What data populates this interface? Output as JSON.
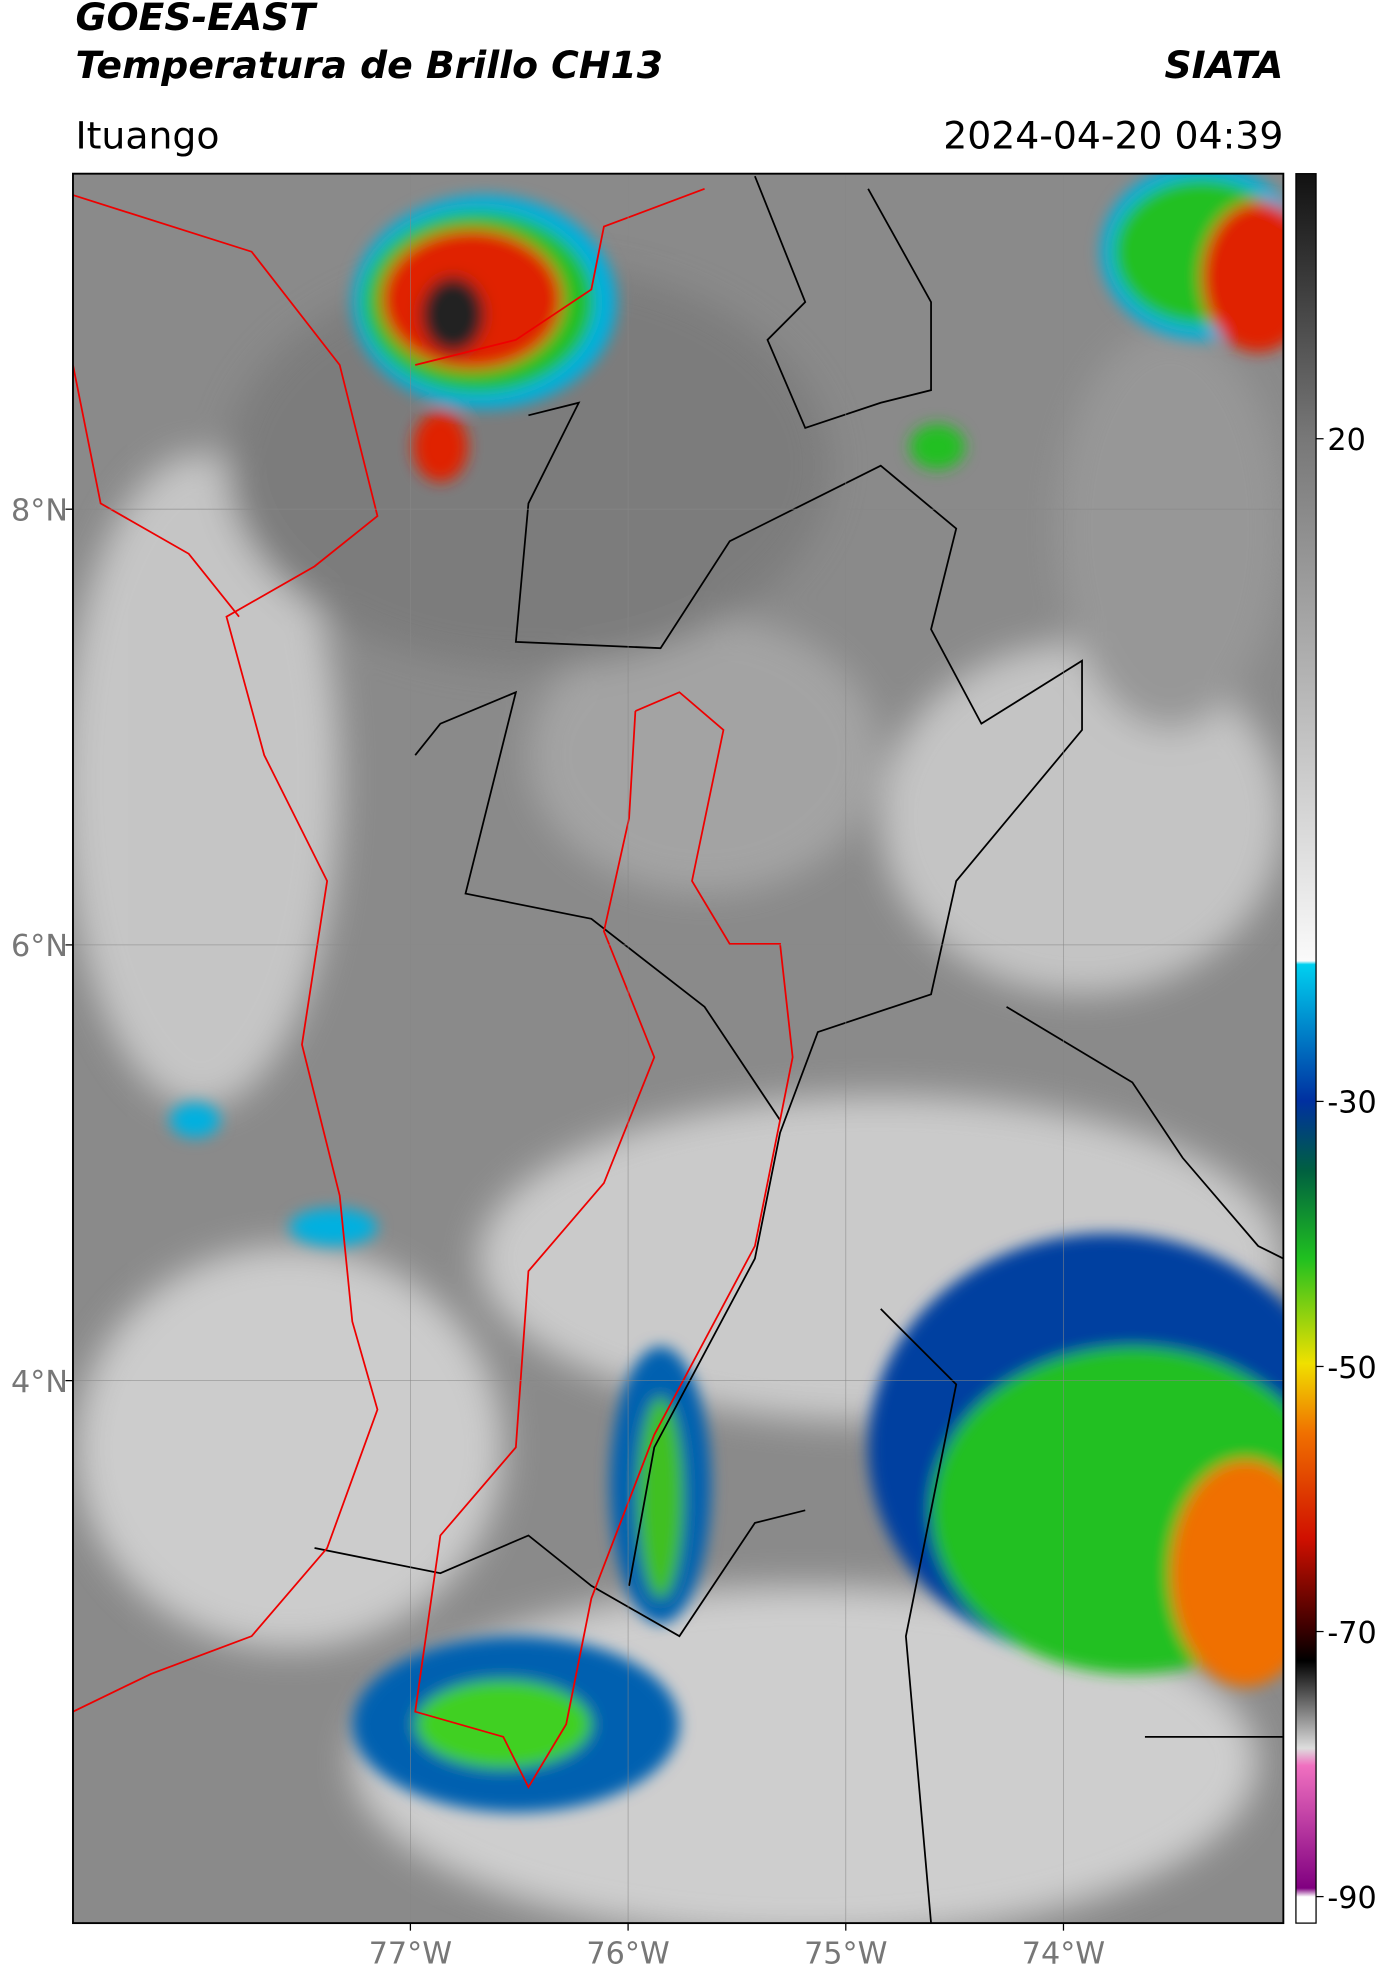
{
  "header": {
    "title": "GOES-EAST",
    "subtitle": "Temperatura de Brillo CH13",
    "source": "SIATA",
    "location": "Ituango",
    "timestamp": "2024-04-20 04:39"
  },
  "map": {
    "xlim": [
      -78.55,
      -72.99
    ],
    "ylim": [
      1.51,
      9.54
    ],
    "xticks": [
      {
        "value": -77,
        "label": "77°W"
      },
      {
        "value": -76,
        "label": "76°W"
      },
      {
        "value": -75,
        "label": "75°W"
      },
      {
        "value": -74,
        "label": "74°W"
      }
    ],
    "yticks": [
      {
        "value": 8,
        "label": "8°N"
      },
      {
        "value": 6,
        "label": "6°N"
      },
      {
        "value": 4,
        "label": "4°N"
      }
    ],
    "grid": true
  },
  "colorbar": {
    "clim": [
      -92,
      40
    ],
    "ticks": [
      20,
      -30,
      -50,
      -70,
      -90
    ]
  }
}
